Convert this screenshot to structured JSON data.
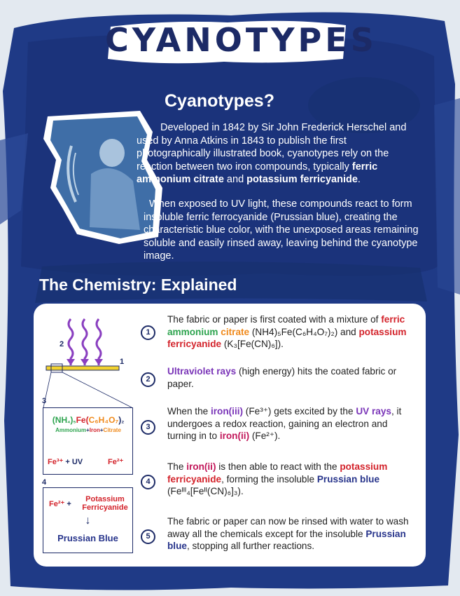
{
  "title": "CYANOTYPES",
  "intro": {
    "heading": "Cyanotypes?",
    "p1_a": "Developed in 1842 by Sir John Frederick Herschel and used by Anna Atkins in 1843 to publish the first photographically illustrated book, cyanotypes rely on the reaction between two iron compounds, typically ",
    "p1_b1": "ferric ammonium citrate",
    "p1_c": " and ",
    "p1_b2": "potassium ferricyanide",
    "p1_d": ".",
    "p2": "When exposed to UV light, these compounds react to form insoluble ferric ferrocyanide (Prussian blue), creating the characteristic blue color, with the unexposed areas remaining soluble and easily rinsed away, leaving behind the cyanotype image."
  },
  "chem_heading": "The Chemistry: Explained",
  "diagram": {
    "label1": "1",
    "label2": "2",
    "label3": "3",
    "label4": "4",
    "box3_formula_a": "(NH",
    "box3_formula_b": "₄",
    "box3_formula_c": ")",
    "box3_formula_d": "₅",
    "box3_formula_fe": "Fe(",
    "box3_formula_e": "C₆H₄O₇",
    "box3_formula_f": ")",
    "box3_formula_g": "₂",
    "box3_ammonium": "Ammonium",
    "box3_plus1": "+",
    "box3_iron": "Iron",
    "box3_plus2": "+",
    "box3_citrate": "Citrate",
    "box3_fe3": "Fe³⁺",
    "box3_uv": "+ UV",
    "box3_fe2": "Fe²⁺",
    "box4_fe2": "Fe²⁺",
    "box4_plus": "+",
    "box4_potassium": "Potassium",
    "box4_ferricyanide": "Ferricyanide",
    "box4_arrow": "↓",
    "box4_result": "Prussian Blue"
  },
  "steps": [
    {
      "num": "1",
      "t1": "The fabric or paper is first coated with a mixture of ",
      "t2": "ferric",
      "t3": "ammonium",
      "t4": "citrate",
      "t5": " (NH4)₅Fe(C₆H₄O₇)₂) and ",
      "t6": "potassium ferricyanide",
      "t7": " (K₃[Fe(CN)₆])."
    },
    {
      "num": "2",
      "t1": "Ultraviolet rays",
      "t2": " (high energy) hits the coated fabric or paper."
    },
    {
      "num": "3",
      "t1": "When the ",
      "t2": "iron(iii)",
      "t3": " (Fe³⁺) gets excited by the ",
      "t4": "UV rays",
      "t5": ", it undergoes a redox reaction, gaining an electron and turning in to ",
      "t6": "iron(ii)",
      "t7": " (Fe²⁺)."
    },
    {
      "num": "4",
      "t1": "The ",
      "t2": "iron(ii)",
      "t3": " is then able to react with the ",
      "t4": "potassium ferricyanide",
      "t5": ", forming the insoluble ",
      "t6": "Prussian blue",
      "t7": " (Feᴵᴵᴵ₄[Feᴵᴵ(CN)₆]₃)."
    },
    {
      "num": "5",
      "t1": "The fabric or paper can now be rinsed with water to wash away all the chemicals except for the insoluble ",
      "t2": "Prussian blue",
      "t3": ", stopping all further reactions."
    }
  ],
  "colors": {
    "navy": "#1c2a66",
    "purple": "#7a35b8",
    "red": "#d3232b",
    "green": "#2ea44f",
    "orange": "#f08a1c",
    "yellow": "#f2d22e"
  }
}
